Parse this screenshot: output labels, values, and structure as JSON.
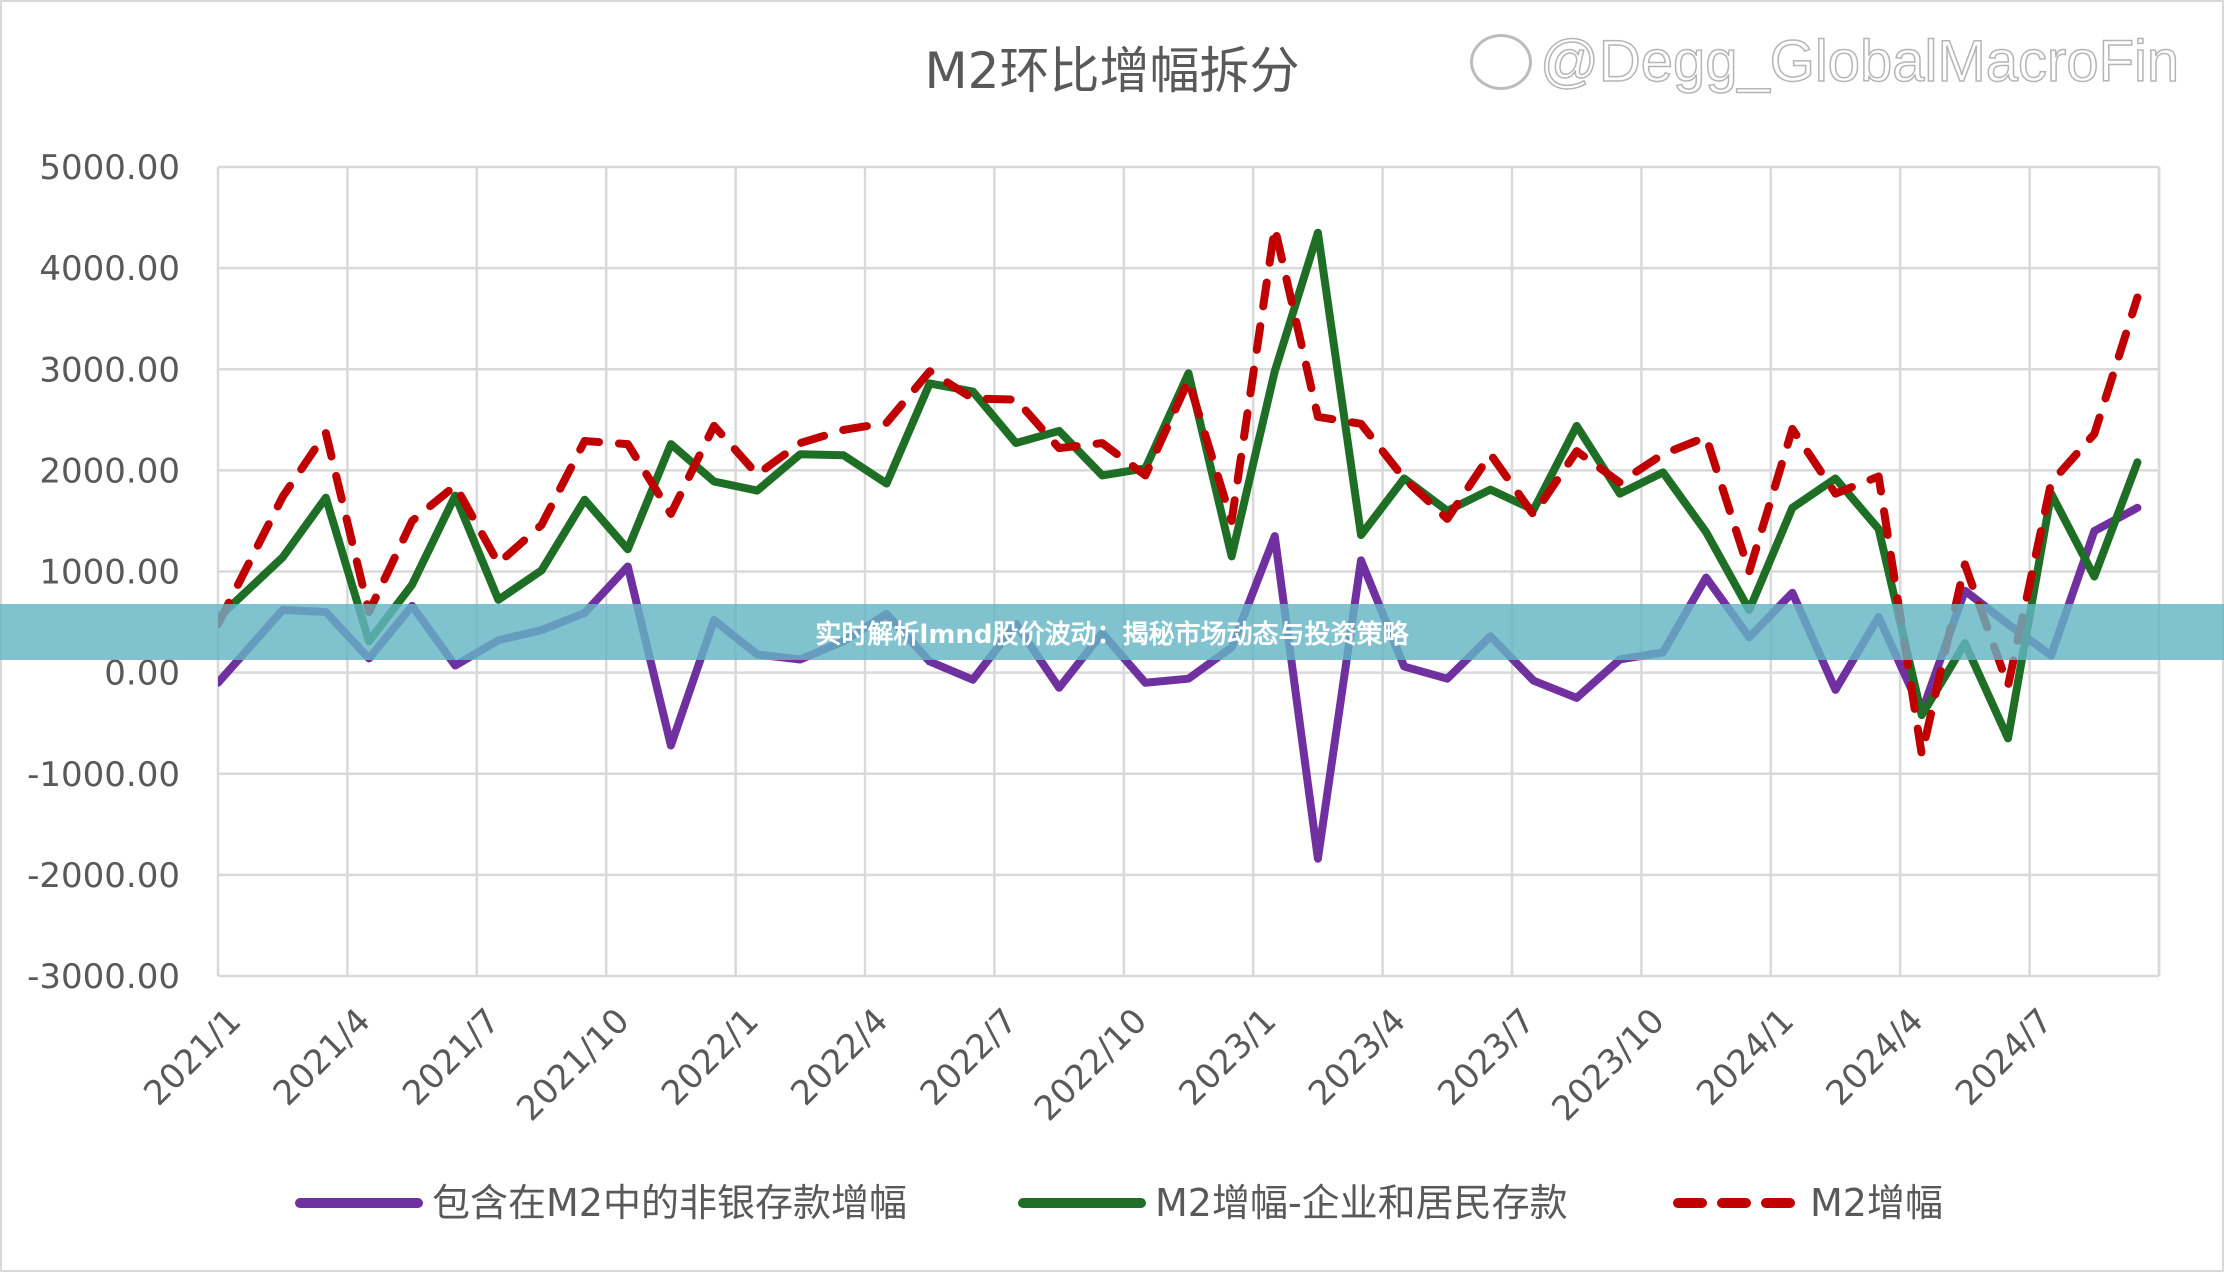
{
  "chart_data": {
    "type": "line",
    "title": "M2环比增幅拆分",
    "xlabel": "",
    "ylabel": "",
    "ylim": [
      -3000,
      5000
    ],
    "yticks": [
      "5000.00",
      "4000.00",
      "3000.00",
      "2000.00",
      "1000.00",
      "0.00",
      "-1000.00",
      "-2000.00",
      "-3000.00"
    ],
    "ytick_values": [
      5000,
      4000,
      3000,
      2000,
      1000,
      0,
      -1000,
      -2000,
      -3000
    ],
    "xtick_labels": [
      "2021/1",
      "2021/4",
      "2021/7",
      "2021/10",
      "2022/1",
      "2022/4",
      "2022/7",
      "2022/10",
      "2023/1",
      "2023/4",
      "2023/7",
      "2023/10",
      "2024/1",
      "2024/4",
      "2024/7"
    ],
    "x": [
      "2021/1",
      "2021/2",
      "2021/3",
      "2021/4",
      "2021/5",
      "2021/6",
      "2021/7",
      "2021/8",
      "2021/9",
      "2021/10",
      "2021/11",
      "2021/12",
      "2022/1",
      "2022/2",
      "2022/3",
      "2022/4",
      "2022/5",
      "2022/6",
      "2022/7",
      "2022/8",
      "2022/9",
      "2022/10",
      "2022/11",
      "2022/12",
      "2023/1",
      "2023/2",
      "2023/3",
      "2023/4",
      "2023/5",
      "2023/6",
      "2023/7",
      "2023/8",
      "2023/9",
      "2023/10",
      "2023/11",
      "2023/12",
      "2024/1",
      "2024/2",
      "2024/3",
      "2024/4",
      "2024/5",
      "2024/6",
      "2024/7",
      "2024/8",
      "2024/9"
    ],
    "grid": true,
    "legend": "bottom",
    "series": [
      {
        "name": "包含在M2中的非银存款增幅",
        "color": "#7030a0",
        "dash": false,
        "values": [
          140,
          620,
          600,
          140,
          660,
          70,
          320,
          420,
          590,
          1050,
          -720,
          520,
          180,
          130,
          310,
          580,
          110,
          -70,
          480,
          -150,
          390,
          -100,
          -60,
          250,
          1350,
          -1840,
          1110,
          60,
          -60,
          360,
          -80,
          -250,
          130,
          200,
          940,
          350,
          790,
          -170,
          550,
          -390,
          810,
          480,
          170,
          1400,
          1630
        ]
      },
      {
        "name": "M2增幅-企业和居民存款",
        "color": "#1e6e26",
        "dash": false,
        "values": [
          740,
          1140,
          1730,
          310,
          870,
          1750,
          720,
          1010,
          1710,
          1220,
          2260,
          1890,
          1800,
          2160,
          2150,
          1870,
          2860,
          2780,
          2270,
          2390,
          1950,
          2020,
          2960,
          1150,
          2980,
          4350,
          1360,
          1920,
          1600,
          1810,
          1610,
          2440,
          1770,
          1980,
          1390,
          620,
          1630,
          1920,
          1420,
          -420,
          290,
          -650,
          1770,
          950,
          2080
        ]
      },
      {
        "name": "M2增幅",
        "color": "#c00000",
        "dash": true,
        "values": [
          900,
          1740,
          2370,
          600,
          1500,
          1850,
          1080,
          1460,
          2290,
          2260,
          1570,
          2440,
          1960,
          2270,
          2400,
          2470,
          2980,
          2710,
          2700,
          2220,
          2270,
          1950,
          2890,
          1500,
          4400,
          2530,
          2460,
          1920,
          1520,
          2160,
          1560,
          2190,
          1880,
          2160,
          2330,
          1000,
          2410,
          1770,
          1940,
          -810,
          1070,
          -130,
          1880,
          2360,
          3710
        ]
      }
    ]
  },
  "overlay": {
    "banner_text": "实时解析lmnd股价波动：揭秘市场动态与投资策略"
  },
  "watermark": {
    "text": "@Degg_GlobalMacroFin",
    "icon": "weibo-icon"
  }
}
